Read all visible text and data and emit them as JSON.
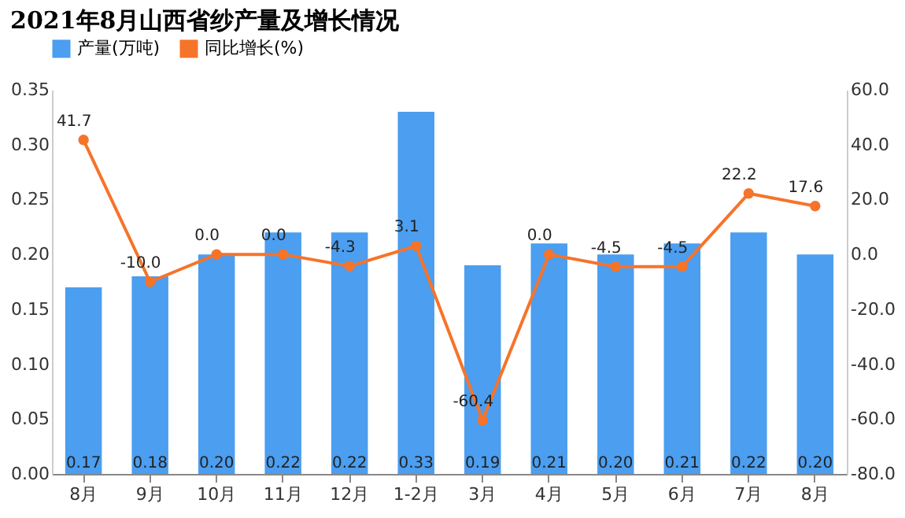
{
  "chart_data": {
    "type": "bar",
    "title": "2021年8月山西省纱产量及增长情况",
    "categories": [
      "8月",
      "9月",
      "10月",
      "11月",
      "12月",
      "1-2月",
      "3月",
      "4月",
      "5月",
      "6月",
      "7月",
      "8月"
    ],
    "series": [
      {
        "name": "产量(万吨)",
        "color": "#4b9ef0",
        "values": [
          0.17,
          0.18,
          0.2,
          0.22,
          0.22,
          0.33,
          0.19,
          0.21,
          0.2,
          0.21,
          0.22,
          0.2
        ],
        "value_labels": [
          "0.17",
          "0.18",
          "0.20",
          "0.22",
          "0.22",
          "0.33",
          "0.19",
          "0.21",
          "0.20",
          "0.21",
          "0.22",
          "0.20"
        ]
      },
      {
        "name": "同比增长(%)",
        "type": "line",
        "axis": "y2",
        "color": "#f5742a",
        "values": [
          41.7,
          -10.0,
          0.0,
          0.0,
          -4.3,
          3.1,
          -60.4,
          0.0,
          -4.5,
          -4.5,
          22.2,
          17.6
        ],
        "value_labels": [
          "41.7",
          "-10.0",
          "0.0",
          "0.0",
          "-4.3",
          "3.1",
          "-60.4",
          "0.0",
          "-4.5",
          "-4.5",
          "22.2",
          "17.6"
        ]
      }
    ],
    "ylim": [
      0,
      0.35
    ],
    "yticks": [
      {
        "value": 0,
        "label": "0.00"
      },
      {
        "value": 0.05,
        "label": "0.05"
      },
      {
        "value": 0.1,
        "label": "0.10"
      },
      {
        "value": 0.15,
        "label": "0.15"
      },
      {
        "value": 0.2,
        "label": "0.20"
      },
      {
        "value": 0.25,
        "label": "0.25"
      },
      {
        "value": 0.3,
        "label": "0.30"
      },
      {
        "value": 0.35,
        "label": "0.35"
      }
    ],
    "y2lim": [
      -80,
      60
    ],
    "y2ticks": [
      {
        "value": -80,
        "label": "-80.0"
      },
      {
        "value": -60,
        "label": "-60.0"
      },
      {
        "value": -40,
        "label": "-40.0"
      },
      {
        "value": -20,
        "label": "-20.0"
      },
      {
        "value": 0,
        "label": "0.0"
      },
      {
        "value": 20,
        "label": "20.0"
      },
      {
        "value": 40,
        "label": "40.0"
      },
      {
        "value": 60,
        "label": "60.0"
      }
    ],
    "legend": "top",
    "grid": false,
    "marker": "circle",
    "line_style": "solid"
  }
}
